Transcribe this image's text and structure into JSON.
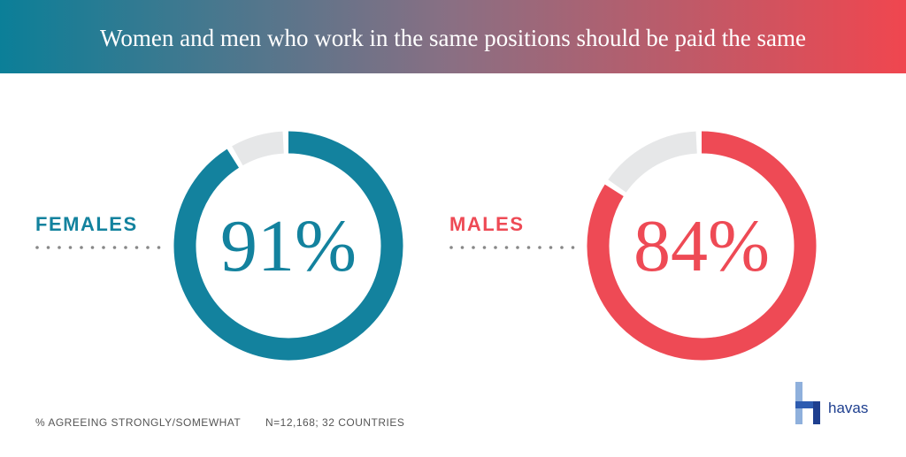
{
  "header": {
    "title": "Women and men who work in the same positions should be paid the same"
  },
  "chart_data": [
    {
      "type": "pie",
      "categories": [
        "FEMALES"
      ],
      "values": [
        91
      ],
      "value_labels": [
        "91%"
      ],
      "color": "#13829e"
    },
    {
      "type": "pie",
      "categories": [
        "MALES"
      ],
      "values": [
        84
      ],
      "value_labels": [
        "84%"
      ],
      "color": "#ee4a55"
    }
  ],
  "footer": {
    "note": "% AGREEING STRONGLY/SOMEWHAT",
    "sample": "N=12,168; 32 COUNTRIES"
  },
  "logo": {
    "text": "havas"
  }
}
